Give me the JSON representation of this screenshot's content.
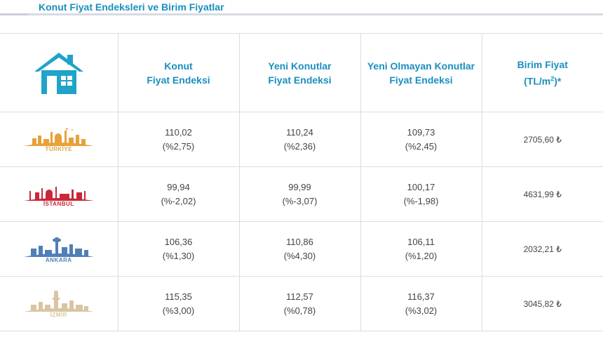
{
  "header": {
    "title": "Konut Fiyat Endeksleri ve Birim Fiyatlar"
  },
  "columns": [
    {
      "line1": "Konut",
      "line2": "Fiyat Endeksi"
    },
    {
      "line1": "Yeni Konutlar",
      "line2": "Fiyat Endeksi"
    },
    {
      "line1": "Yeni Olmayan Konutlar",
      "line2": "Fiyat Endeksi"
    },
    {
      "line1": "Birim Fiyat",
      "line2_pre": "(TL/m",
      "line2_sup": "2",
      "line2_post": ")*"
    }
  ],
  "rows": [
    {
      "city": "TÜRKİYE",
      "color": "#e8a13a",
      "cells": [
        {
          "value": "110,02",
          "change": "(%2,75)"
        },
        {
          "value": "110,24",
          "change": "(%2,36)"
        },
        {
          "value": "109,73",
          "change": "(%2,45)"
        }
      ],
      "price": "2705,60 ₺"
    },
    {
      "city": "İSTANBUL",
      "color": "#c8283a",
      "cells": [
        {
          "value": "99,94",
          "change": "(%-2,02)"
        },
        {
          "value": "99,99",
          "change": "(%-3,07)"
        },
        {
          "value": "100,17",
          "change": "(%-1,98)"
        }
      ],
      "price": "4631,99 ₺"
    },
    {
      "city": "ANKARA",
      "color": "#4f7fb8",
      "cells": [
        {
          "value": "106,36",
          "change": "(%1,30)"
        },
        {
          "value": "110,86",
          "change": "(%4,30)"
        },
        {
          "value": "106,11",
          "change": "(%1,20)"
        }
      ],
      "price": "2032,21 ₺"
    },
    {
      "city": "İZMİR",
      "color": "#d9c4a3",
      "cells": [
        {
          "value": "115,35",
          "change": "(%3,00)"
        },
        {
          "value": "112,57",
          "change": "(%0,78)"
        },
        {
          "value": "116,37",
          "change": "(%3,02)"
        }
      ],
      "price": "3045,82 ₺"
    }
  ],
  "colors": {
    "accent": "#1a8fbf",
    "house_icon": "#1fa3c9",
    "grid": "#d9dde3"
  },
  "icons": {
    "house": "house-icon"
  }
}
